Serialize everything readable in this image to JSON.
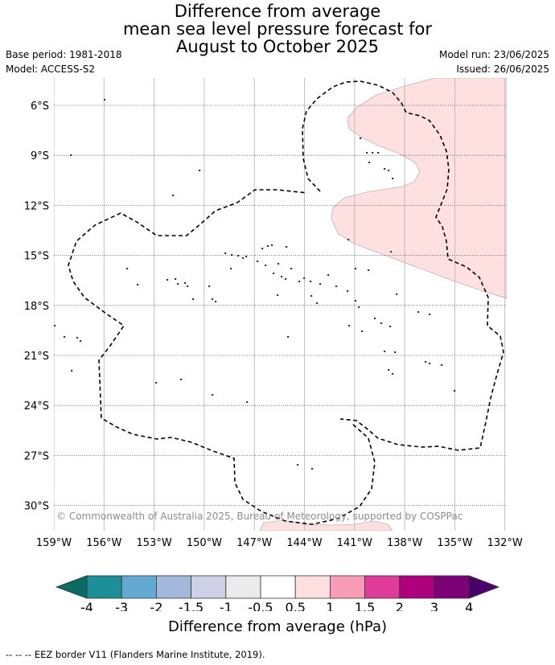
{
  "title": {
    "line1": "Difference from average",
    "line2": "mean sea level pressure forecast for",
    "line3": "August to October 2025"
  },
  "meta": {
    "base_period": "Base period: 1981-2018",
    "model": "Model: ACCESS-S2",
    "model_run": "Model run: 23/06/2025",
    "issued": "Issued: 26/06/2025"
  },
  "map": {
    "lat_labels": [
      "6°S",
      "9°S",
      "12°S",
      "15°S",
      "18°S",
      "21°S",
      "24°S",
      "27°S",
      "30°S"
    ],
    "lon_labels": [
      "159°W",
      "156°W",
      "153°W",
      "150°W",
      "147°W",
      "144°W",
      "141°W",
      "138°W",
      "135°W",
      "132°W"
    ],
    "copyright": "© Commonwealth of Australia 2025, Bureau of Meteorology, supported by COSPPac",
    "anomaly_fill_color": "#fde0df",
    "eez_color": "#000000"
  },
  "colorbar": {
    "labels": [
      "-4",
      "-3",
      "-2",
      "-1.5",
      "-1",
      "-0.5",
      "0.5",
      "1",
      "1.5",
      "2",
      "3",
      "4"
    ],
    "colors": [
      "#0b6b63",
      "#1d8f96",
      "#63a9d0",
      "#a3b9db",
      "#ced0e5",
      "#ebebeb",
      "#ffffff",
      "#fde0df",
      "#f89cb8",
      "#de3c98",
      "#ad017d",
      "#7b0277",
      "#4a006a"
    ],
    "title": "Difference from average (hPa)"
  },
  "footer": "--  --  -- EEZ border V11 (Flanders Marine Institute, 2019)."
}
